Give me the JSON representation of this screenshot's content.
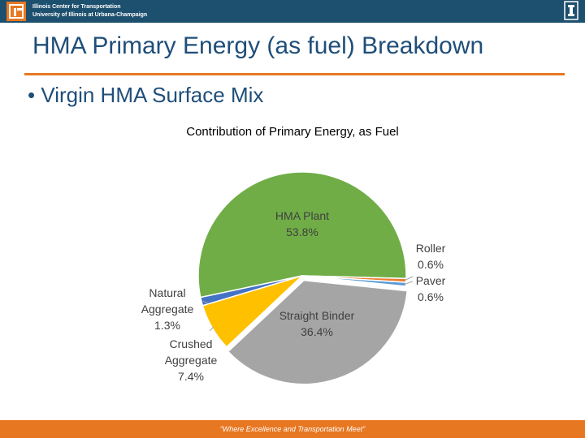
{
  "header": {
    "org_line1": "Illinois Center for Transportation",
    "org_line2": "University of Illinois at Urbana-Champaign"
  },
  "slide": {
    "title": "HMA Primary Energy (as fuel) Breakdown",
    "bullet": "• Virgin HMA Surface Mix"
  },
  "footer": {
    "tagline": "“Where Excellence and Transportation Meet”"
  },
  "colors": {
    "header_bg": "#1d4f6e",
    "accent": "#e87722",
    "title": "#1f4e79"
  },
  "chart_data": {
    "type": "pie",
    "title": "Contribution of Primary Energy, as Fuel",
    "slices": [
      {
        "name": "HMA Plant",
        "value": 53.8,
        "label": "53.8%",
        "color": "#70ad47"
      },
      {
        "name": "Roller",
        "value": 0.6,
        "label": "0.6%",
        "color": "#ed7d31"
      },
      {
        "name": "Paver",
        "value": 0.6,
        "label": "0.6%",
        "color": "#5b9bd5"
      },
      {
        "name": "Straight Binder",
        "value": 36.4,
        "label": "36.4%",
        "color": "#a5a5a5"
      },
      {
        "name": "Crushed Aggregate",
        "value": 7.4,
        "label": "7.4%",
        "color": "#ffc000"
      },
      {
        "name": "Natural Aggregate",
        "value": 1.3,
        "label": "1.3%",
        "color": "#4472c4"
      }
    ]
  }
}
